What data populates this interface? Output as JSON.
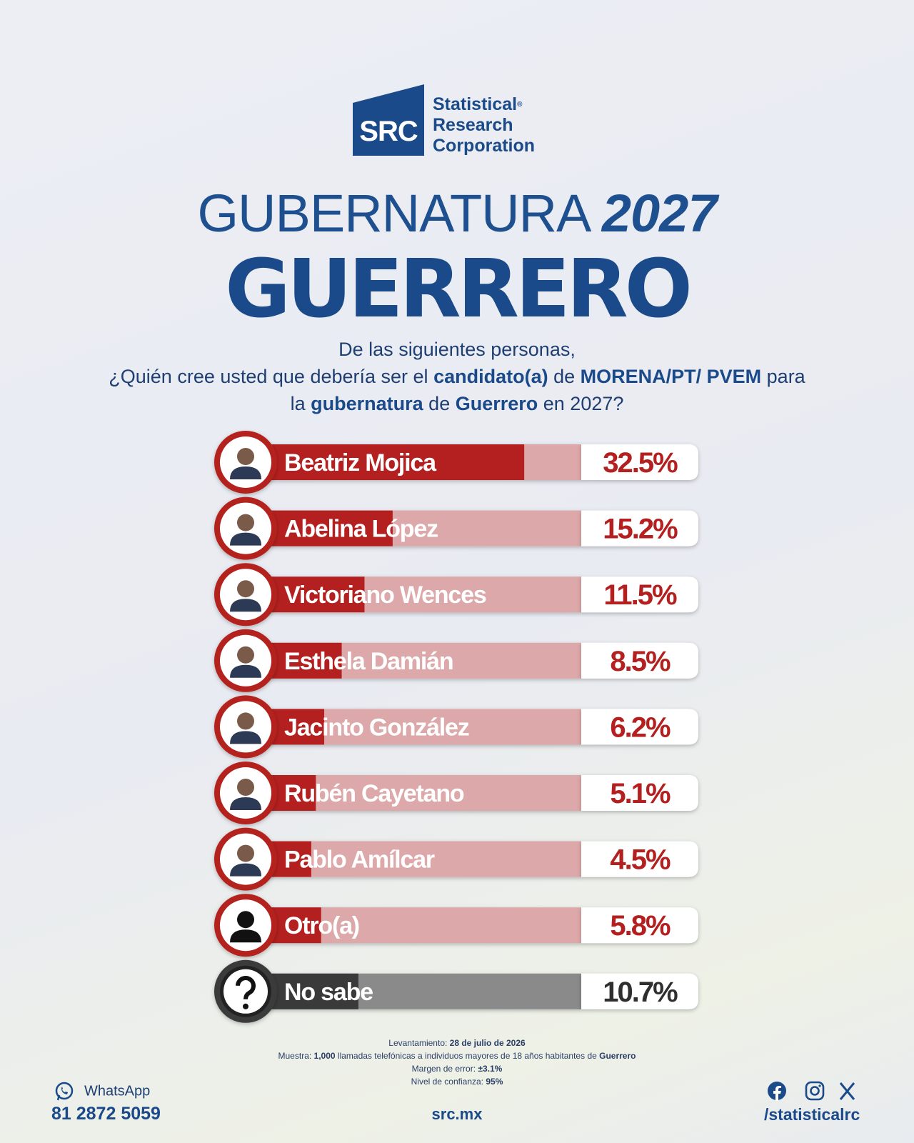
{
  "header": {
    "logo_mark": "SRC",
    "logo_lines": [
      "Statistical",
      "Research",
      "Corporation"
    ],
    "logo_registered": "®",
    "title_light": "GUBERNATURA",
    "title_year": "2027",
    "title_state": "GUERRERO",
    "question": [
      "De las siguientes personas,",
      "¿Quién cree usted que debería ser el ",
      "candidato(a)",
      " de ",
      "MORENA/PT/ PVEM",
      " para la ",
      "gubernatura",
      " de ",
      "Guerrero",
      " en 2027?"
    ]
  },
  "chart_data": {
    "type": "bar",
    "orientation": "horizontal",
    "categories": [
      "Beatriz Mojica",
      "Abelina López",
      "Victoriano Wences",
      "Esthela Damián",
      "Jacinto González",
      "Rubén Cayetano",
      "Pablo Amílcar",
      "Otro(a)",
      "No sabe"
    ],
    "values": [
      32.5,
      15.2,
      11.5,
      8.5,
      6.2,
      5.1,
      4.5,
      5.8,
      10.7
    ],
    "value_labels": [
      "32.5%",
      "15.2%",
      "11.5%",
      "8.5%",
      "6.2%",
      "5.1%",
      "4.5%",
      "5.8%",
      "10.7%"
    ],
    "colors": [
      "#b3201f",
      "#b3201f",
      "#b3201f",
      "#b3201f",
      "#b3201f",
      "#b3201f",
      "#b3201f",
      "#b3201f",
      "#3a3a3a"
    ],
    "xlim": [
      0,
      40
    ]
  },
  "footer": {
    "methodology": [
      [
        "Levantamiento: ",
        "28 de julio de 2026"
      ],
      [
        "Muestra: ",
        "1,000",
        " llamadas telefónicas a individuos mayores de 18 años habitantes de ",
        "Guerrero"
      ],
      [
        "Margen de error: ",
        "±3.1%"
      ],
      [
        "Nivel de confianza: ",
        "95%"
      ]
    ],
    "whatsapp_label": "WhatsApp",
    "phone": "81 2872 5059",
    "website": "src.mx",
    "social_handle": "/statisticalrc"
  }
}
